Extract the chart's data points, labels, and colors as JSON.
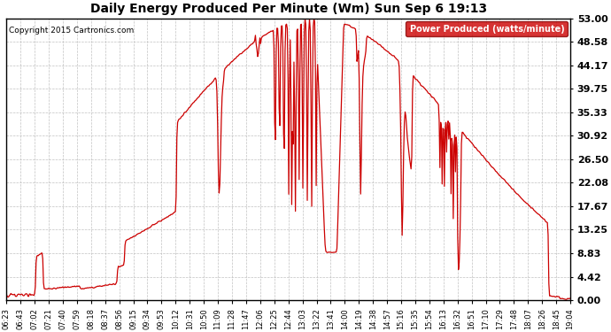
{
  "title": "Daily Energy Produced Per Minute (Wm) Sun Sep 6 19:13",
  "copyright": "Copyright 2015 Cartronics.com",
  "legend_label": "Power Produced (watts/minute)",
  "legend_bg": "#cc0000",
  "legend_fg": "#ffffff",
  "line_color": "#cc0000",
  "bg_color": "#ffffff",
  "grid_color": "#bbbbbb",
  "title_color": "#000000",
  "copyright_color": "#000000",
  "ymax": 53.0,
  "yticks": [
    0.0,
    4.42,
    8.83,
    13.25,
    17.67,
    22.08,
    26.5,
    30.92,
    35.33,
    39.75,
    44.17,
    48.58,
    53.0
  ],
  "xtick_labels": [
    "06:23",
    "06:43",
    "07:02",
    "07:21",
    "07:40",
    "07:59",
    "08:18",
    "08:37",
    "08:56",
    "09:15",
    "09:34",
    "09:53",
    "10:12",
    "10:31",
    "10:50",
    "11:09",
    "11:28",
    "11:47",
    "12:06",
    "12:25",
    "12:44",
    "13:03",
    "13:22",
    "13:41",
    "14:00",
    "14:19",
    "14:38",
    "14:57",
    "15:16",
    "15:35",
    "15:54",
    "16:13",
    "16:32",
    "16:51",
    "17:10",
    "17:29",
    "17:48",
    "18:07",
    "18:26",
    "18:45",
    "19:04"
  ]
}
